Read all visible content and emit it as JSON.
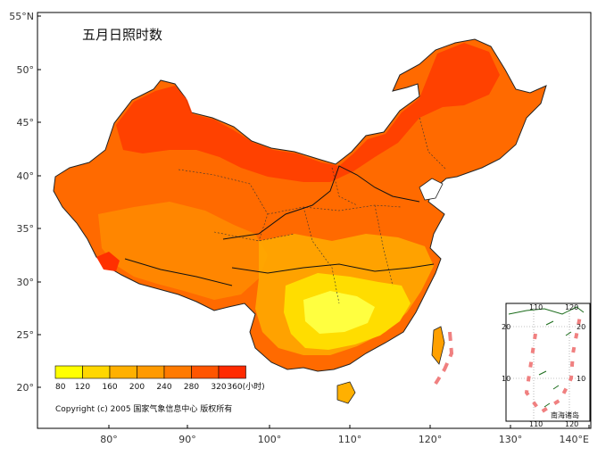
{
  "title": "五月日照时数",
  "copyright": "Copyright (c) 2005 国家气象信息中心 版权所有",
  "lat_labels": [
    "55°N",
    "50°",
    "45°",
    "40°",
    "35°",
    "30°",
    "25°",
    "20°"
  ],
  "lon_labels": [
    "80°",
    "90°",
    "100°",
    "110°",
    "120°",
    "130°",
    "140°E"
  ],
  "legend": {
    "values": [
      "80",
      "120",
      "160",
      "200",
      "240",
      "280",
      "320",
      "360(小时)"
    ],
    "colors": [
      "#ffff00",
      "#ffd700",
      "#ffb000",
      "#ff9a00",
      "#ff7a00",
      "#ff5500",
      "#ff2a00"
    ]
  },
  "inset": {
    "label": "南海诸岛",
    "top_labels": [
      "110",
      "120"
    ],
    "bottom_labels": [
      "110",
      "120"
    ],
    "left_labels": [
      "20",
      "10"
    ],
    "right_labels": [
      "20",
      "10"
    ]
  }
}
